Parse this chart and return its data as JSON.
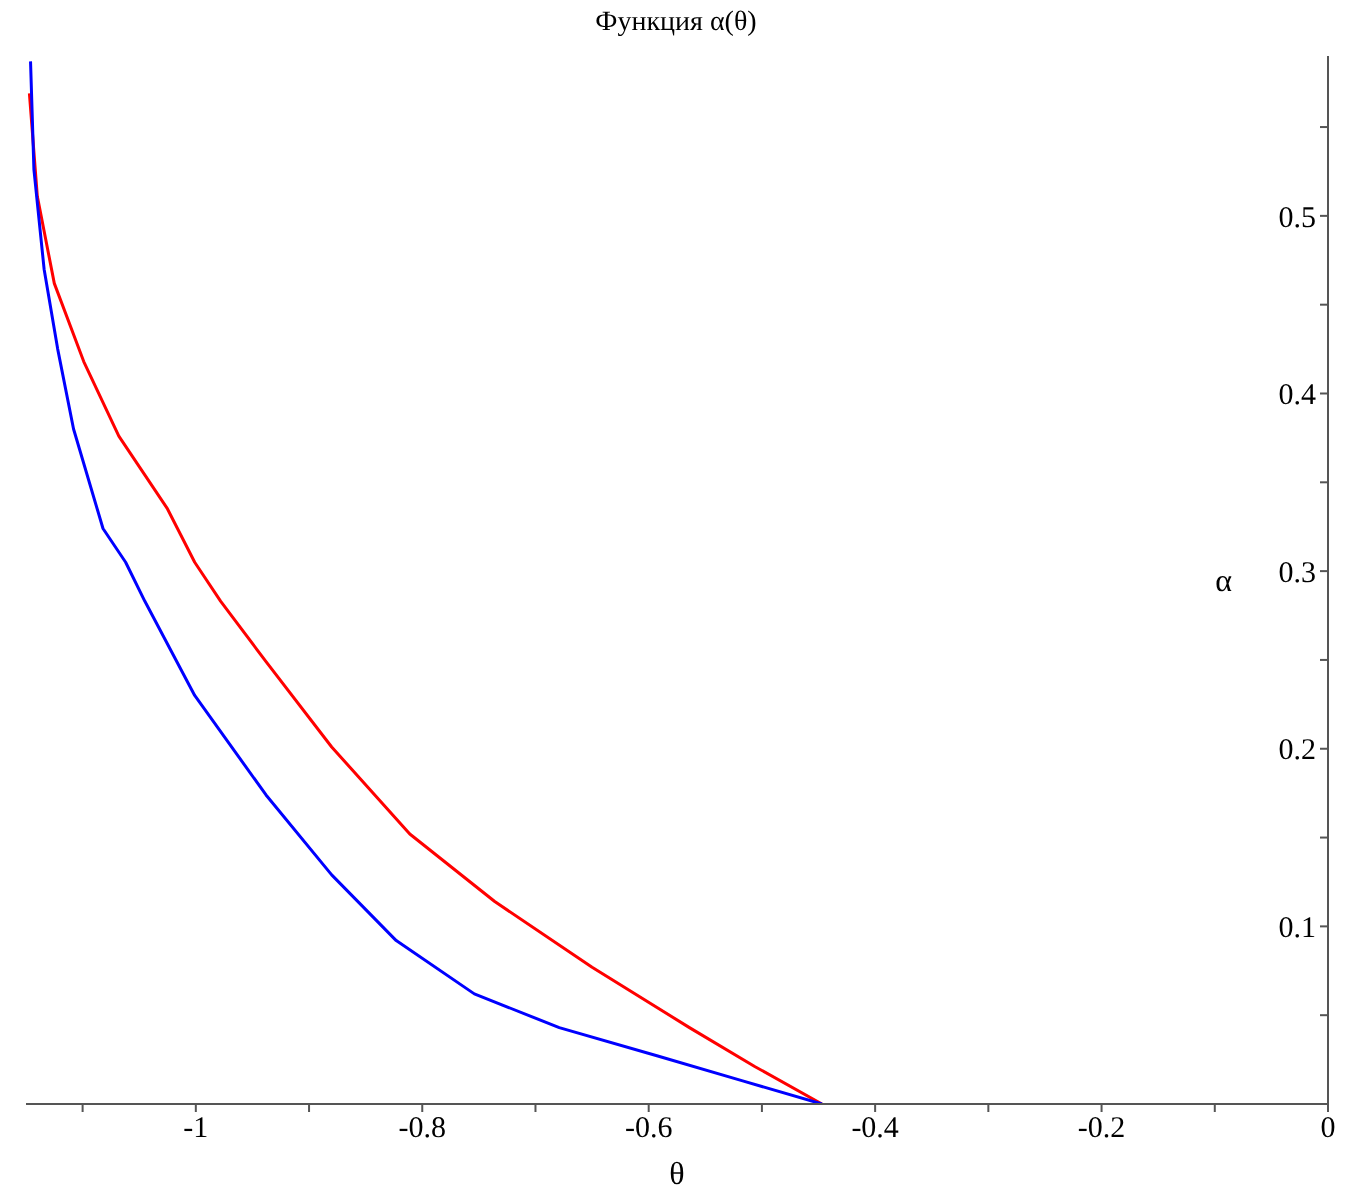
{
  "chart_data": {
    "type": "line",
    "title": "Функция α(θ)",
    "xlabel": "θ",
    "ylabel": "α",
    "xlim": [
      -1.15,
      0
    ],
    "ylim": [
      0,
      0.59
    ],
    "xticks": [
      {
        "value": -1.1,
        "label": null
      },
      -1,
      {
        "value": -0.9,
        "label": null
      },
      -0.8,
      {
        "value": -0.7,
        "label": null
      },
      -0.6,
      {
        "value": -0.5,
        "label": null
      },
      -0.4,
      {
        "value": -0.3,
        "label": null
      },
      -0.2,
      {
        "value": -0.1,
        "label": null
      },
      0
    ],
    "yticks": [
      {
        "value": 0.05,
        "label": null
      },
      0.1,
      {
        "value": 0.15,
        "label": null
      },
      0.2,
      {
        "value": 0.25,
        "label": null
      },
      0.3,
      {
        "value": 0.35,
        "label": null
      },
      0.4,
      {
        "value": 0.45,
        "label": null
      },
      0.5,
      {
        "value": 0.55,
        "label": null
      }
    ],
    "marker": "none",
    "line_style": "solid",
    "series": [
      {
        "color": "#ff0000",
        "x": [
          -1.147,
          -1.14,
          -1.125,
          -1.099,
          -1.068,
          -1.025,
          -1.001,
          -0.978,
          -0.938,
          -0.88,
          -0.811,
          -0.736,
          -0.65,
          -0.564,
          -0.506,
          -0.447
        ],
        "values": [
          0.569,
          0.511,
          0.462,
          0.418,
          0.376,
          0.335,
          0.305,
          0.283,
          0.249,
          0.201,
          0.152,
          0.114,
          0.077,
          0.043,
          0.021,
          0
        ]
      },
      {
        "color": "#0000ff",
        "x": [
          -1.146,
          -1.143,
          -1.134,
          -1.122,
          -1.108,
          -1.082,
          -1.062,
          -1.045,
          -1.001,
          -0.938,
          -0.88,
          -0.823,
          -0.754,
          -0.679,
          -0.592,
          -0.517,
          -0.447
        ],
        "values": [
          0.587,
          0.526,
          0.47,
          0.425,
          0.38,
          0.324,
          0.305,
          0.283,
          0.23,
          0.174,
          0.129,
          0.092,
          0.062,
          0.043,
          0.027,
          0.013,
          0
        ]
      }
    ]
  }
}
